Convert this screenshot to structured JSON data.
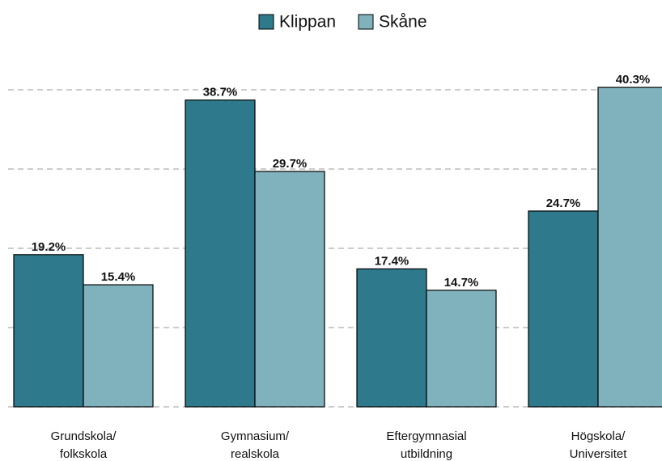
{
  "chart_data": {
    "type": "bar",
    "categories": [
      [
        "Grundskola/",
        "folkskola"
      ],
      [
        "Gymnasium/",
        "realskola"
      ],
      [
        "Eftergymnasial",
        "utbildning"
      ],
      [
        "Högskola/",
        "Universitet"
      ]
    ],
    "series": [
      {
        "name": "Klippan",
        "color": "#2e7a8c",
        "values": [
          19.2,
          38.7,
          17.4,
          24.7
        ],
        "value_labels": [
          "19.2%",
          "38.7%",
          "17.4%",
          "24.7%"
        ]
      },
      {
        "name": "Skåne",
        "color": "#7fb2bc",
        "values": [
          15.4,
          29.7,
          14.7,
          40.3
        ],
        "value_labels": [
          "15.4%",
          "29.7%",
          "14.7%",
          "40.3%"
        ]
      }
    ],
    "ylim": [
      0,
      40
    ],
    "yticks": [
      0,
      10,
      20,
      30,
      40
    ],
    "grid": true,
    "legend": "top"
  }
}
